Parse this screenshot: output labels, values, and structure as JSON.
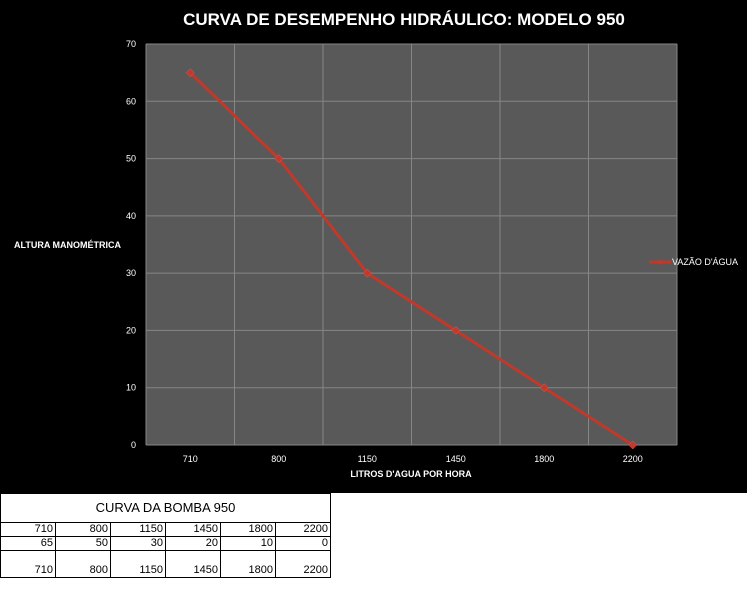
{
  "chart_data": {
    "type": "line",
    "title": "CURVA DE DESEMPENHO HIDRÁULICO: MODELO 950",
    "xlabel": "LITROS D'AGUA POR HORA",
    "ylabel": "ALTURA MANOMÉTRICA",
    "categories": [
      "710",
      "800",
      "1150",
      "1450",
      "1800",
      "2200"
    ],
    "series": [
      {
        "name": "VAZÃO D'ÁGUA",
        "values": [
          65,
          50,
          30,
          20,
          10,
          0
        ],
        "color": "#c0392b"
      }
    ],
    "ylim": [
      0,
      70
    ],
    "yticks": [
      "0",
      "10",
      "20",
      "30",
      "40",
      "50",
      "60",
      "70"
    ],
    "grid": true,
    "legend": "right",
    "plot_background": "#595959"
  },
  "table": {
    "title": "CURVA DA BOMBA 950",
    "row1": [
      "710",
      "800",
      "1150",
      "1450",
      "1800",
      "2200"
    ],
    "row2": [
      "65",
      "50",
      "30",
      "20",
      "10",
      "0"
    ],
    "row3": [
      "710",
      "800",
      "1150",
      "1450",
      "1800",
      "2200"
    ]
  }
}
